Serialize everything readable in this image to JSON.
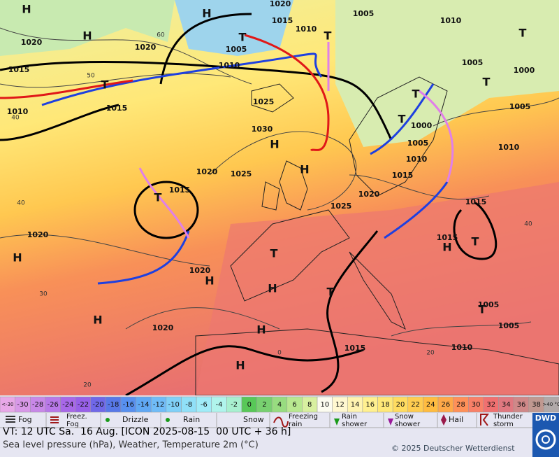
{
  "map": {
    "isobar_labels": [
      "1020",
      "1015",
      "1020",
      "1010",
      "1015",
      "1005",
      "1010",
      "1015",
      "1020",
      "1010",
      "1005",
      "1010",
      "1005",
      "1000",
      "1005",
      "1025",
      "1030",
      "1000",
      "1005",
      "1010",
      "1010",
      "1015",
      "1020",
      "1025",
      "1015",
      "1020",
      "1025",
      "1015",
      "1015",
      "1020",
      "1020",
      "1020",
      "1015",
      "1010",
      "1005",
      "1005"
    ],
    "highs": [
      "H",
      "H",
      "H",
      "H",
      "H",
      "H",
      "H",
      "H",
      "H",
      "H",
      "H",
      "H"
    ],
    "lows": [
      "T",
      "T",
      "T",
      "T",
      "T",
      "T",
      "T",
      "T",
      "T",
      "T",
      "T",
      "T"
    ],
    "grid_labels": [
      "60",
      "50",
      "40",
      "40",
      "30",
      "20",
      "20",
      "0",
      "40"
    ]
  },
  "temperature_scale": [
    {
      "label": "<-30",
      "color": "#e8a8e8"
    },
    {
      "label": "-30",
      "color": "#d898e8"
    },
    {
      "label": "-28",
      "color": "#c888e8"
    },
    {
      "label": "-26",
      "color": "#b878e8"
    },
    {
      "label": "-24",
      "color": "#a868e8"
    },
    {
      "label": "-22",
      "color": "#9860e8"
    },
    {
      "label": "-20",
      "color": "#7068e8"
    },
    {
      "label": "-18",
      "color": "#5878e8"
    },
    {
      "label": "-16",
      "color": "#5890f0"
    },
    {
      "label": "-14",
      "color": "#60a8f4"
    },
    {
      "label": "-12",
      "color": "#70bcf8"
    },
    {
      "label": "-10",
      "color": "#80d0f8"
    },
    {
      "label": "-8",
      "color": "#90e0f8"
    },
    {
      "label": "-6",
      "color": "#a0ecf8"
    },
    {
      "label": "-4",
      "color": "#b0f4ec"
    },
    {
      "label": "-2",
      "color": "#a8f0d0"
    },
    {
      "label": "0",
      "color": "#58c858"
    },
    {
      "label": "2",
      "color": "#78d070"
    },
    {
      "label": "4",
      "color": "#98dc80"
    },
    {
      "label": "6",
      "color": "#b8e890"
    },
    {
      "label": "8",
      "color": "#d8f0a0"
    },
    {
      "label": "10",
      "color": "#fcfcf0"
    },
    {
      "label": "12",
      "color": "#fff8d0"
    },
    {
      "label": "14",
      "color": "#fff4b0"
    },
    {
      "label": "16",
      "color": "#fff090"
    },
    {
      "label": "18",
      "color": "#ffe878"
    },
    {
      "label": "20",
      "color": "#ffdc60"
    },
    {
      "label": "22",
      "color": "#ffcc50"
    },
    {
      "label": "24",
      "color": "#ffbc40"
    },
    {
      "label": "26",
      "color": "#ffa848"
    },
    {
      "label": "28",
      "color": "#ff9058"
    },
    {
      "label": "30",
      "color": "#f88068"
    },
    {
      "label": "32",
      "color": "#f07070"
    },
    {
      "label": "34",
      "color": "#e07880"
    },
    {
      "label": "36",
      "color": "#d08888"
    },
    {
      "label": "38",
      "color": "#c09890"
    },
    {
      "label": ">40 °C",
      "color": "#b0a8a8"
    }
  ],
  "weather_legend": [
    [
      "Fog"
    ],
    [
      "Freez.",
      "Fog"
    ],
    [
      "Drizzle"
    ],
    [
      "Rain"
    ],
    [
      "Snow"
    ],
    [
      "Freezing",
      "rain"
    ],
    [
      "Rain",
      "shower"
    ],
    [
      "Snow",
      "shower"
    ],
    [
      "Hail"
    ],
    [
      "Thunder",
      "storm"
    ]
  ],
  "footer": {
    "valid_time": "VT: 12 UTC Sa.  16 Aug. [ICON 2025-08-15  00 UTC + 36 h]",
    "description": "Sea level pressure (hPa), Weather, Temperature 2m (°C)",
    "copyright": "© 2025 Deutscher Wetterdienst",
    "logo": "DWD"
  }
}
